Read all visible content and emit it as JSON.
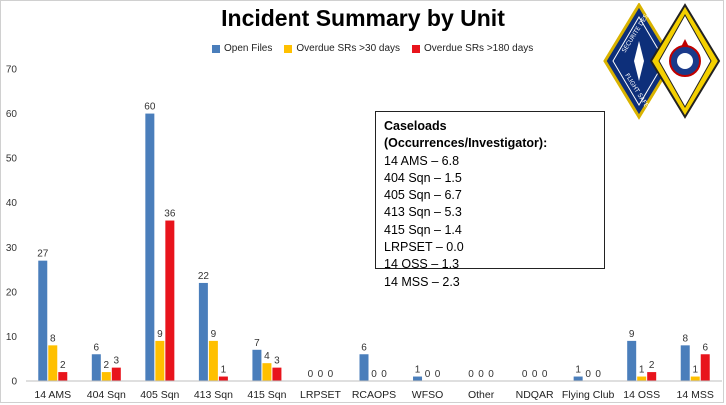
{
  "chart_data": {
    "type": "bar",
    "title": "Incident Summary by Unit",
    "categories": [
      "14 AMS",
      "404 Sqn",
      "405 Sqn",
      "413 Sqn",
      "415 Sqn",
      "LRPSET",
      "RCAOPS",
      "WFSO",
      "Other",
      "NDQAR",
      "Flying Club",
      "14 OSS",
      "14 MSS"
    ],
    "series": [
      {
        "name": "Open Files",
        "color": "#4a7ebb",
        "values": [
          27,
          6,
          60,
          22,
          7,
          0,
          6,
          1,
          0,
          0,
          1,
          9,
          8
        ]
      },
      {
        "name": "Overdue SRs >30 days",
        "color": "#ffc000",
        "values": [
          8,
          2,
          9,
          9,
          4,
          0,
          0,
          0,
          0,
          0,
          0,
          1,
          1
        ]
      },
      {
        "name": "Overdue SRs >180 days",
        "color": "#e8141c",
        "values": [
          2,
          3,
          36,
          1,
          3,
          0,
          0,
          0,
          0,
          0,
          0,
          2,
          6
        ]
      }
    ],
    "ylim": [
      0,
      70
    ],
    "yticks": [
      0,
      10,
      20,
      30,
      40,
      50,
      60,
      70
    ],
    "grid": false,
    "legend_position": "top"
  },
  "annotation": {
    "header": "Caseloads (Occurrences/Investigator):",
    "lines": [
      "14 AMS – 6.8",
      "404 Sqn – 1.5",
      "405 Sqn – 6.7",
      "413 Sqn – 5.3",
      "415 Sqn – 1.4",
      "LRPSET – 0.0",
      "14 OSS – 1.3",
      "14 MSS – 2.3"
    ]
  },
  "logo": {
    "icon": "flight-safety-badge-icon",
    "text_top": "SECURITE DES VOLS",
    "text_bottom": "FLIGHT SAFETY"
  }
}
